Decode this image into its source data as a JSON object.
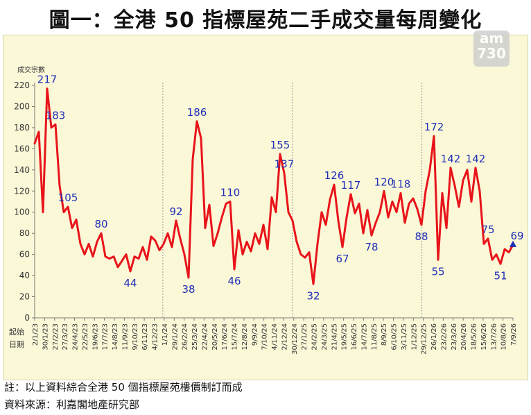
{
  "title": "圖一：全港 50 指標屋苑二手成交量每周變化",
  "logo_text": "am730",
  "footnotes": {
    "note": "註：以上資料綜合全港 50 個指標屋苑樓價制訂而成",
    "source": "資料來源：利嘉閣地產研究部"
  },
  "chart_data": {
    "type": "line",
    "ylabel": "成交宗數",
    "xlabel": "起始日期",
    "ylim": [
      0,
      220
    ],
    "yticks": [
      0,
      20,
      40,
      60,
      80,
      100,
      120,
      140,
      160,
      180,
      200,
      220
    ],
    "grid": "vertical year dividers",
    "line_color": "#e8141a",
    "label_color": "#1f2fb8",
    "x_tick_labels": [
      "2/1/23",
      "30/1/23",
      "27/2/23",
      "27/3/23",
      "24/4/23",
      "22/5/23",
      "19/6/23",
      "17/7/23",
      "14/8/23",
      "11/9/23",
      "9/10/23",
      "6/11/23",
      "4/12/23",
      "1/1/24",
      "29/1/24",
      "26/2/24",
      "25/3/24",
      "22/4/24",
      "20/5/24",
      "17/6/24",
      "15/7/24",
      "12/8/24",
      "9/9/24",
      "7/10/24",
      "4/11/24",
      "2/12/24",
      "30/12/24",
      "27/1/25",
      "24/2/25",
      "24/3/25",
      "21/4/25",
      "19/5/25",
      "16/6/25",
      "14/7/25",
      "11/8/25",
      "8/9/25",
      "6/10/25",
      "3/11/25",
      "1/12/25",
      "29/12/25",
      "26/1/26",
      "23/2/26",
      "23/3/26",
      "20/4/26",
      "18/5/26",
      "15/6/26",
      "13/7/26",
      "10/8/26",
      "7/9/26"
    ],
    "values": [
      165,
      176,
      100,
      217,
      180,
      183,
      125,
      100,
      105,
      85,
      93,
      70,
      60,
      70,
      58,
      72,
      80,
      58,
      56,
      58,
      48,
      54,
      60,
      44,
      58,
      56,
      67,
      55,
      77,
      73,
      64,
      70,
      80,
      67,
      92,
      75,
      60,
      38,
      150,
      186,
      170,
      85,
      107,
      68,
      80,
      95,
      108,
      110,
      46,
      83,
      60,
      72,
      63,
      80,
      70,
      88,
      65,
      114,
      100,
      155,
      137,
      100,
      92,
      72,
      60,
      57,
      62,
      32,
      70,
      100,
      88,
      112,
      126,
      92,
      67,
      95,
      117,
      99,
      108,
      80,
      102,
      78,
      90,
      100,
      120,
      95,
      110,
      100,
      118,
      90,
      108,
      113,
      103,
      88,
      120,
      140,
      172,
      55,
      118,
      85,
      142,
      125,
      105,
      130,
      140,
      110,
      142,
      120,
      70,
      75,
      55,
      60,
      51,
      65,
      62,
      69
    ],
    "data_labels": [
      {
        "index": 3,
        "value": 217
      },
      {
        "index": 5,
        "value": 183
      },
      {
        "index": 8,
        "value": 105
      },
      {
        "index": 16,
        "value": 80
      },
      {
        "index": 23,
        "value": 44
      },
      {
        "index": 34,
        "value": 92
      },
      {
        "index": 37,
        "value": 38
      },
      {
        "index": 39,
        "value": 186
      },
      {
        "index": 47,
        "value": 110
      },
      {
        "index": 48,
        "value": 46
      },
      {
        "index": 59,
        "value": 155
      },
      {
        "index": 60,
        "value": 137
      },
      {
        "index": 67,
        "value": 32
      },
      {
        "index": 72,
        "value": 126
      },
      {
        "index": 74,
        "value": 67
      },
      {
        "index": 76,
        "value": 117
      },
      {
        "index": 81,
        "value": 78
      },
      {
        "index": 84,
        "value": 120
      },
      {
        "index": 88,
        "value": 118
      },
      {
        "index": 93,
        "value": 88
      },
      {
        "index": 96,
        "value": 172
      },
      {
        "index": 97,
        "value": 55
      },
      {
        "index": 100,
        "value": 142
      },
      {
        "index": 106,
        "value": 142
      },
      {
        "index": 109,
        "value": 75
      },
      {
        "index": 112,
        "value": 51
      },
      {
        "index": 115,
        "value": 69
      }
    ],
    "year_dividers_before": [
      "1/1/24",
      "30/12/24",
      "29/12/25"
    ],
    "last_point_marker": "triangle"
  }
}
